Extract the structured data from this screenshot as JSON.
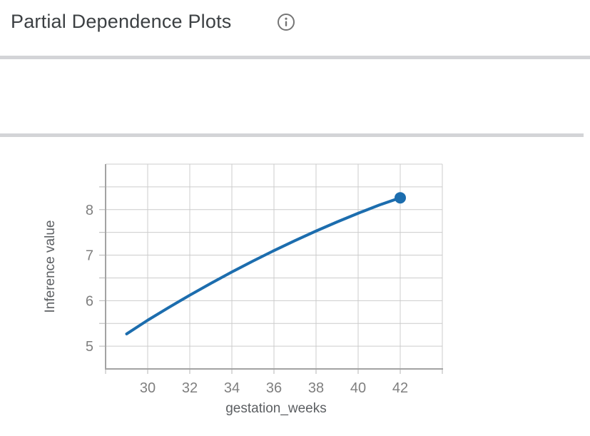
{
  "header": {
    "title": "Partial Dependence Plots",
    "info_icon": "info-icon"
  },
  "section": {
    "label": "gestation_weeks",
    "state": "expanded",
    "collapse_icon": "triangle-down-icon"
  },
  "chart_data": {
    "type": "line",
    "title": "",
    "xlabel": "gestation_weeks",
    "ylabel": "Inference value",
    "x": [
      29,
      30,
      31,
      32,
      33,
      34,
      35,
      36,
      37,
      38,
      39,
      40,
      41,
      42
    ],
    "y": [
      5.27,
      5.57,
      5.85,
      6.12,
      6.38,
      6.63,
      6.87,
      7.1,
      7.32,
      7.53,
      7.73,
      7.92,
      8.1,
      8.26
    ],
    "xlim": [
      28,
      44
    ],
    "ylim": [
      4.5,
      9.0
    ],
    "x_gridline_step": 2,
    "y_gridline_step": 0.5,
    "x_tick_labels": [
      30,
      32,
      34,
      36,
      38,
      40,
      42
    ],
    "y_tick_labels": [
      5,
      6,
      7,
      8
    ],
    "y_tick_marks": [
      5,
      5.5,
      6,
      6.5,
      7,
      7.5,
      8,
      8.5
    ],
    "grid": true,
    "legend": "none",
    "endpoint_marker": true,
    "line_color": "#1c6dae",
    "colors": {
      "grid": "#cccccc",
      "axis": "#a3a3a3",
      "tick": "#b5b5b5",
      "tick_label": "#7f7f7f",
      "axis_title": "#5c5f62"
    }
  },
  "colors": {
    "divider": "#d3d4d7",
    "title_text": "#3c4043",
    "icon_gray": "#757575",
    "gutter_bg": "#f4f5f7"
  }
}
